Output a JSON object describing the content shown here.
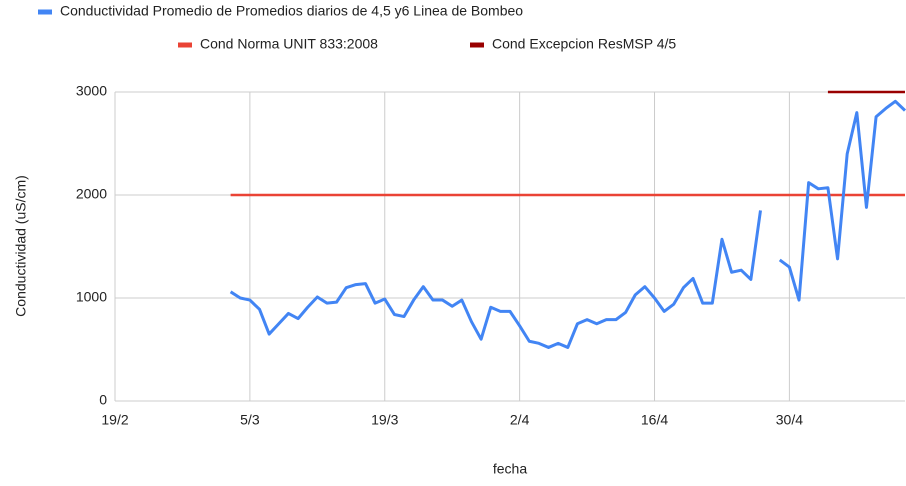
{
  "chart_data": {
    "type": "line",
    "xlabel": "fecha",
    "ylabel": "Conductividad (uS/cm)",
    "xlim": [
      "19/2",
      "12/5"
    ],
    "xticks": [
      "19/2",
      "5/3",
      "19/3",
      "2/4",
      "16/4",
      "30/4"
    ],
    "ylim": [
      0,
      3000
    ],
    "yticks": [
      0,
      1000,
      2000,
      3000
    ],
    "grid": true,
    "series": [
      {
        "name": "Conductividad Promedio de  Promedios  diarios de 4,5 y6 Linea de Bombeo",
        "color": "#4285f4",
        "x": [
          "3/3",
          "4/3",
          "5/3",
          "6/3",
          "7/3",
          "8/3",
          "9/3",
          "10/3",
          "11/3",
          "12/3",
          "13/3",
          "14/3",
          "15/3",
          "16/3",
          "17/3",
          "18/3",
          "19/3",
          "20/3",
          "21/3",
          "22/3",
          "23/3",
          "24/3",
          "25/3",
          "26/3",
          "27/3",
          "28/3",
          "29/3",
          "30/3",
          "31/3",
          "1/4",
          "2/4",
          "3/4",
          "4/4",
          "5/4",
          "6/4",
          "7/4",
          "8/4",
          "9/4",
          "10/4",
          "11/4",
          "12/4",
          "13/4",
          "14/4",
          "15/4",
          "16/4",
          "17/4",
          "18/4",
          "19/4",
          "20/4",
          "21/4",
          "22/4",
          "23/4",
          "24/4",
          "25/4",
          "26/4",
          "27/4",
          "28/4",
          "29/4",
          "30/4",
          "1/5",
          "2/5",
          "3/5",
          "4/5",
          "5/5",
          "6/5",
          "7/5",
          "8/5",
          "9/5",
          "10/5",
          "11/5",
          "12/5"
        ],
        "values": [
          1060,
          1000,
          980,
          890,
          650,
          750,
          850,
          800,
          910,
          1010,
          950,
          960,
          1100,
          1130,
          1140,
          950,
          990,
          840,
          820,
          980,
          1110,
          980,
          980,
          920,
          980,
          770,
          600,
          910,
          870,
          870,
          730,
          580,
          560,
          520,
          560,
          520,
          750,
          790,
          750,
          790,
          790,
          860,
          1030,
          1110,
          1000,
          870,
          940,
          1100,
          1190,
          950,
          950,
          1570,
          1250,
          1270,
          1180,
          1850,
          null,
          1370,
          1300,
          980,
          2120,
          2060,
          2070,
          1380,
          2400,
          2800,
          1880,
          2760,
          2840,
          2910,
          2820
        ]
      },
      {
        "name": "Cond Norma UNIT 833:2008",
        "color": "#ea4335",
        "x": [
          "3/3",
          "12/5"
        ],
        "values": [
          2000,
          2000
        ]
      },
      {
        "name": "Cond Excepcion ResMSP 4/5",
        "color": "#990000",
        "x": [
          "4/5",
          "12/5"
        ],
        "values": [
          3000,
          3000
        ]
      }
    ]
  }
}
